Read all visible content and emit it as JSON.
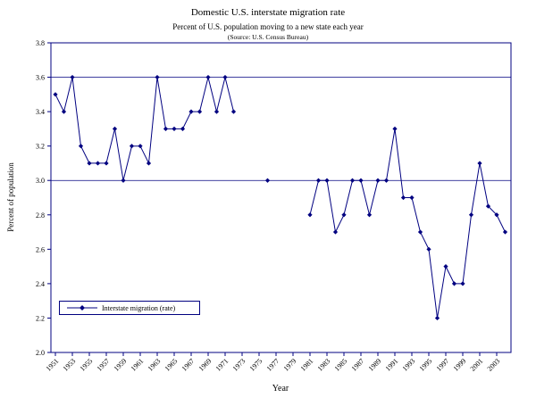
{
  "chart": {
    "title": "Domestic U.S. interstate migration rate",
    "subtitle": "Percent of U.S. population moving to a new state each year",
    "source": "(Source: U.S. Census Bureau)",
    "xlabel": "Year",
    "ylabel": "Percent of population",
    "legend_label": "Interstate migration (rate)"
  },
  "chart_data": {
    "type": "line",
    "title": "Domestic U.S. interstate migration rate",
    "subtitle": "Percent of U.S. population moving to a new state each year",
    "source": "(Source: U.S. Census Bureau)",
    "xlabel": "Year",
    "ylabel": "Percent of population",
    "ylim": [
      2.0,
      3.8
    ],
    "ytick_step": 0.2,
    "x_start": 1951,
    "xticks": [
      1951,
      1953,
      1955,
      1957,
      1959,
      1961,
      1963,
      1965,
      1967,
      1969,
      1971,
      1973,
      1975,
      1977,
      1979,
      1981,
      1983,
      1985,
      1987,
      1989,
      1991,
      1993,
      1995,
      1997,
      1999,
      2001,
      2003
    ],
    "gridlines_y": [
      3.0,
      3.6
    ],
    "grid": "horizontal-partial",
    "legend_position": "inside-bottom-left",
    "colors": {
      "axis": "#000080",
      "line": "#000080",
      "text": "#000000",
      "background": "#ffffff"
    },
    "series": [
      {
        "name": "Interstate migration (rate)",
        "color": "#000080",
        "marker": "diamond",
        "segments": [
          {
            "start_year": 1951,
            "values": [
              3.5,
              3.4,
              3.6,
              3.2,
              3.1,
              3.1,
              3.1,
              3.3,
              3.0,
              3.2,
              3.2,
              3.1,
              3.6,
              3.3,
              3.3,
              3.3,
              3.4,
              3.4,
              3.6,
              3.4,
              3.6,
              3.4
            ]
          },
          {
            "start_year": 1976,
            "values": [
              3.0
            ]
          },
          {
            "start_year": 1981,
            "values": [
              2.8,
              3.0,
              3.0,
              2.7,
              2.8,
              3.0,
              3.0,
              2.8,
              3.0,
              3.0,
              3.3,
              2.9,
              2.9,
              2.7,
              2.6,
              2.2,
              2.5,
              2.4,
              2.4,
              2.8,
              3.1,
              2.85,
              2.8,
              2.7
            ]
          }
        ]
      }
    ]
  }
}
